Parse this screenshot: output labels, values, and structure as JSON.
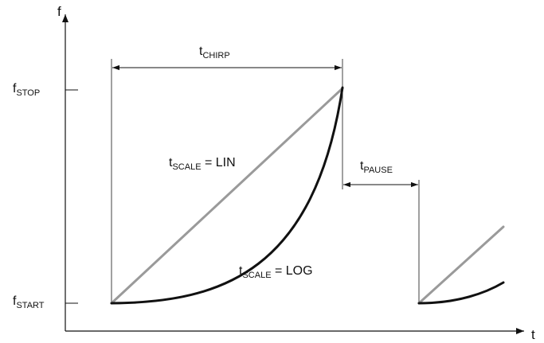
{
  "axes": {
    "y_label": "f",
    "x_label": "t"
  },
  "ticks": {
    "stop": {
      "main": "f",
      "sub": "STOP"
    },
    "start": {
      "main": "f",
      "sub": "START"
    }
  },
  "intervals": {
    "chirp": {
      "main": "t",
      "sub": "CHIRP"
    },
    "pause": {
      "main": "t",
      "sub": "PAUSE"
    }
  },
  "curves": {
    "lin": {
      "main": "t",
      "sub": "SCALE",
      "suffix": " = LIN",
      "color": "#9a9a9a"
    },
    "log": {
      "main": "t",
      "sub": "SCALE",
      "suffix": " = LOG",
      "color": "#111111"
    }
  }
}
